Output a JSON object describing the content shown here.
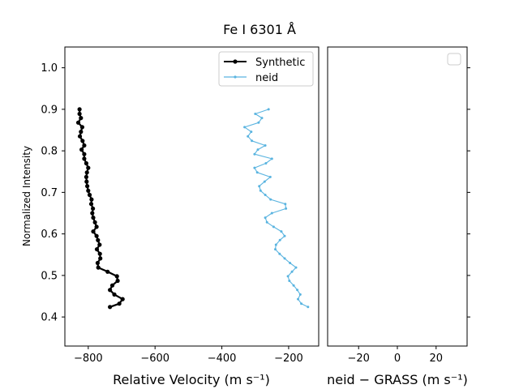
{
  "chart_data": [
    {
      "type": "line",
      "title": "Fe I 6301 Å",
      "xlabel": "Relative Velocity (m s⁻¹)",
      "ylabel": "Normalized Intensity",
      "xlim": [
        -870,
        -110
      ],
      "ylim": [
        0.33,
        1.05
      ],
      "xticks": [
        -800,
        -600,
        -400,
        -200
      ],
      "yticks": [
        0.4,
        0.5,
        0.6,
        0.7,
        0.8,
        0.9,
        1.0
      ],
      "xtick_labels": [
        "−800",
        "−600",
        "−400",
        "−200"
      ],
      "ytick_labels": [
        "0.4",
        "0.5",
        "0.6",
        "0.7",
        "0.8",
        "0.9",
        "1.0"
      ],
      "legend": "top-right",
      "grid": false,
      "series": [
        {
          "name": "Synthetic",
          "color": "#000000",
          "y": [
            0.424,
            0.432,
            0.443,
            0.454,
            0.465,
            0.476,
            0.487,
            0.498,
            0.509,
            0.519,
            0.53,
            0.541,
            0.552,
            0.563,
            0.574,
            0.585,
            0.595,
            0.606,
            0.617,
            0.628,
            0.639,
            0.65,
            0.661,
            0.672,
            0.683,
            0.694,
            0.704,
            0.715,
            0.726,
            0.737,
            0.748,
            0.759,
            0.77,
            0.781,
            0.792,
            0.803,
            0.813,
            0.824,
            0.835,
            0.846,
            0.857,
            0.868,
            0.879,
            0.889,
            0.9
          ],
          "x": [
            -735,
            -707,
            -697,
            -722,
            -735,
            -728,
            -712,
            -714,
            -742,
            -770,
            -772,
            -764,
            -765,
            -774,
            -766,
            -771,
            -775,
            -785,
            -775,
            -780,
            -785,
            -788,
            -786,
            -791,
            -790,
            -796,
            -800,
            -803,
            -805,
            -806,
            -804,
            -800,
            -806,
            -812,
            -812,
            -820,
            -812,
            -817,
            -825,
            -822,
            -818,
            -830,
            -822,
            -826,
            -826
          ]
        },
        {
          "name": "neid",
          "color": "#5ab4e0",
          "y": [
            0.424,
            0.432,
            0.443,
            0.454,
            0.465,
            0.476,
            0.487,
            0.498,
            0.509,
            0.519,
            0.53,
            0.541,
            0.552,
            0.563,
            0.574,
            0.585,
            0.595,
            0.606,
            0.617,
            0.628,
            0.639,
            0.65,
            0.661,
            0.672,
            0.683,
            0.694,
            0.704,
            0.715,
            0.726,
            0.737,
            0.748,
            0.759,
            0.77,
            0.781,
            0.792,
            0.803,
            0.813,
            0.824,
            0.835,
            0.846,
            0.857,
            0.868,
            0.879,
            0.889,
            0.9
          ],
          "x": [
            -142,
            -162,
            -172,
            -165,
            -174,
            -185,
            -198,
            -202,
            -190,
            -178,
            -196,
            -212,
            -227,
            -240,
            -238,
            -226,
            -212,
            -222,
            -245,
            -265,
            -270,
            -250,
            -208,
            -210,
            -254,
            -270,
            -284,
            -288,
            -272,
            -255,
            -294,
            -302,
            -268,
            -250,
            -302,
            -292,
            -270,
            -310,
            -322,
            -312,
            -332,
            -290,
            -280,
            -300,
            -260
          ]
        }
      ]
    },
    {
      "type": "scatter",
      "xlabel": "neid − GRASS (m s⁻¹)",
      "xlim": [
        -36,
        36
      ],
      "ylim": [
        0.33,
        1.05
      ],
      "xticks": [
        -20,
        0,
        20
      ],
      "xtick_labels": [
        "−20",
        "0",
        "20"
      ],
      "yticks": [
        0.4,
        0.5,
        0.6,
        0.7,
        0.8,
        0.9,
        1.0
      ],
      "legend": "top-right",
      "grid": false,
      "series": []
    }
  ]
}
